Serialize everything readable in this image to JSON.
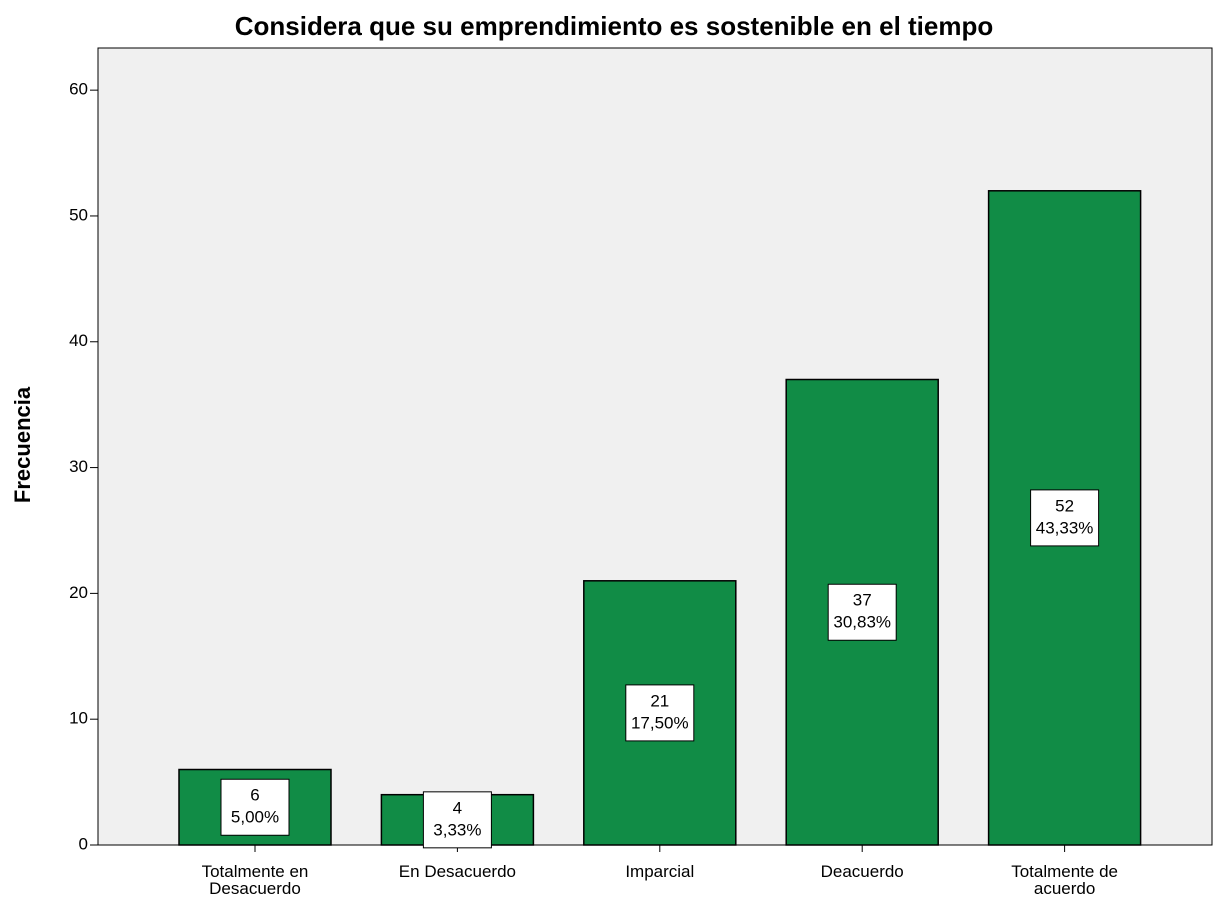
{
  "chart_data": {
    "type": "bar",
    "title": "Considera que su emprendimiento es sostenible en el tiempo",
    "ylabel": "Frecuencia",
    "categories": [
      "Totalmente en Desacuerdo",
      "En Desacuerdo",
      "Imparcial",
      "Deacuerdo",
      "Totalmente de acuerdo"
    ],
    "values": [
      6,
      4,
      21,
      37,
      52
    ],
    "percent_labels": [
      "5,00%",
      "3,33%",
      "17,50%",
      "30,83%",
      "43,33%"
    ],
    "color": "#118c46",
    "ylim": [
      0,
      63.35
    ],
    "yticks": [
      0,
      10,
      20,
      30,
      40,
      50,
      60
    ],
    "grid": false
  }
}
